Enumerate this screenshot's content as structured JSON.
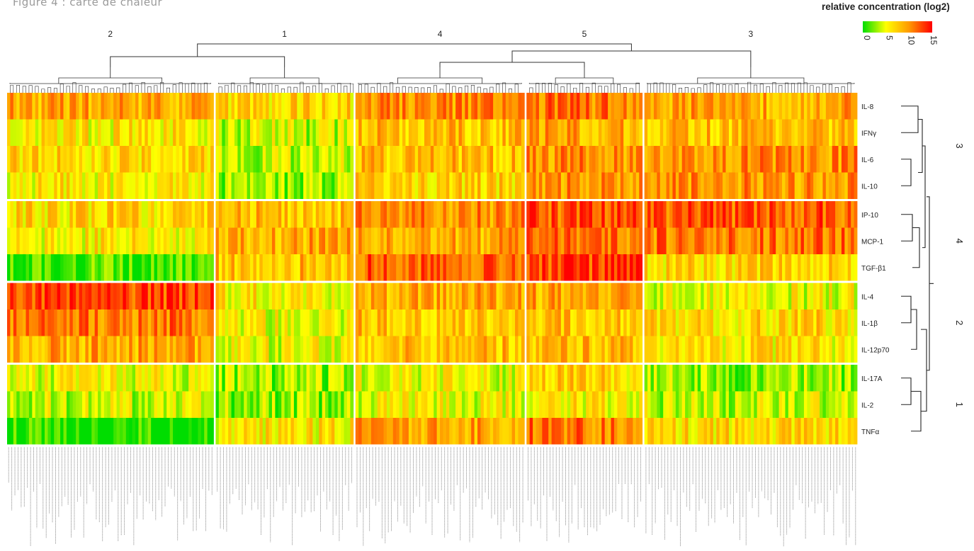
{
  "caption": "Figure 4 : carte de chaleur",
  "chart_data": {
    "type": "heatmap",
    "title": "",
    "legend": {
      "title": "relative concentration (log2)",
      "ticks": [
        "0",
        "5",
        "10",
        "15"
      ],
      "colors": [
        "#00dd00",
        "#ffff00",
        "#ff9900",
        "#ff0000"
      ],
      "range": [
        0,
        15
      ]
    },
    "column_clusters": [
      {
        "label": "2",
        "columns": 66
      },
      {
        "label": "1",
        "columns": 44
      },
      {
        "label": "4",
        "columns": 54
      },
      {
        "label": "5",
        "columns": 37
      },
      {
        "label": "3",
        "columns": 68
      }
    ],
    "row_clusters": [
      {
        "label": "3",
        "rows": [
          "IL-8",
          "IFNγ",
          "IL-6",
          "IL-10"
        ]
      },
      {
        "label": "4",
        "rows": [
          "IP-10",
          "MCP-1",
          "TGF-β1"
        ]
      },
      {
        "label": "2",
        "rows": [
          "IL-4",
          "IL-1β",
          "IL-12p70"
        ]
      },
      {
        "label": "1",
        "rows": [
          "IL-17A",
          "IL-2",
          "TNFα"
        ]
      }
    ],
    "rows": [
      "IL-8",
      "IFNγ",
      "IL-6",
      "IL-10",
      "IP-10",
      "MCP-1",
      "TGF-β1",
      "IL-4",
      "IL-1β",
      "IL-12p70",
      "IL-17A",
      "IL-2",
      "TNFα"
    ],
    "block_mean_values": [
      [
        9,
        7,
        10,
        11,
        9
      ],
      [
        6,
        4,
        8,
        9,
        8
      ],
      [
        7,
        4,
        8,
        10,
        10
      ],
      [
        6,
        3,
        7,
        10,
        10
      ],
      [
        7,
        8,
        10,
        12,
        12
      ],
      [
        6,
        9,
        9,
        11,
        11
      ],
      [
        1,
        8,
        12,
        13,
        7
      ],
      [
        13,
        6,
        9,
        9,
        5
      ],
      [
        11,
        5,
        8,
        8,
        7
      ],
      [
        9,
        5,
        8,
        8,
        6
      ],
      [
        5,
        3,
        5,
        7,
        3
      ],
      [
        4,
        3,
        5,
        6,
        4
      ],
      [
        0,
        6,
        9,
        11,
        7
      ]
    ]
  }
}
